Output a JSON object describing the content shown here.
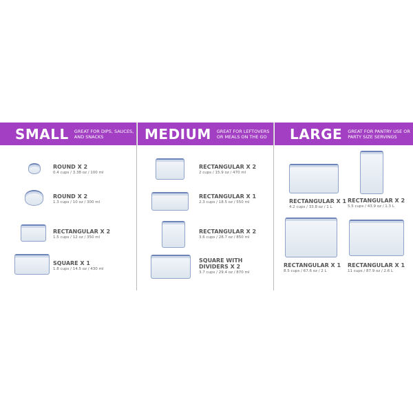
{
  "sections": [
    {
      "title": "SMALL",
      "subtitle": "GREAT FOR DIPS, SAUCES, AND SNACKS",
      "items": [
        {
          "name": "ROUND X 2",
          "spec": "0.4 cups / 3.38 oz / 100 ml"
        },
        {
          "name": "ROUND X 2",
          "spec": "1.3 cups / 10 oz / 300 ml"
        },
        {
          "name": "RECTANGULAR X 2",
          "spec": "1.5 cups / 12 oz / 350 ml"
        },
        {
          "name": "SQUARE X 1",
          "spec": "1.8 cups / 14.5 oz / 430 ml"
        }
      ]
    },
    {
      "title": "MEDIUM",
      "subtitle": "GREAT FOR LEFTOVERS OR MEALS ON THE GO",
      "items": [
        {
          "name": "RECTANGULAR X 2",
          "spec": "2 cups / 15.9 oz / 470 ml"
        },
        {
          "name": "RECTANGULAR X 1",
          "spec": "2.3 cups / 18.5 oz / 550 ml"
        },
        {
          "name": "RECTANGULAR X 2",
          "spec": "3.6 cups / 28.7 oz / 850 ml"
        },
        {
          "name": "SQUARE WITH DIVIDERS X 2",
          "spec": "3.7 cups / 29.4 oz / 870 ml"
        }
      ]
    },
    {
      "title": "LARGE",
      "subtitle": "GREAT FOR PANTRY USE OR PARTY SIZE SERVINGS",
      "items": [
        {
          "name": "RECTANGULAR X 1",
          "spec": "4.2 cups / 33.8 oz / 1 L"
        },
        {
          "name": "RECTANGULAR X 2",
          "spec": "5.5 cups / 43.9 oz / 1.3 L"
        },
        {
          "name": "RECTANGULAR X 1",
          "spec": "8.5 cups / 67.6 oz / 2 L"
        },
        {
          "name": "RECTANGULAR X 1",
          "spec": "11 cups / 87.9 oz / 2.6 L"
        }
      ]
    }
  ],
  "colors": {
    "header": "#a23fc2",
    "lid": "#6d84b8"
  }
}
